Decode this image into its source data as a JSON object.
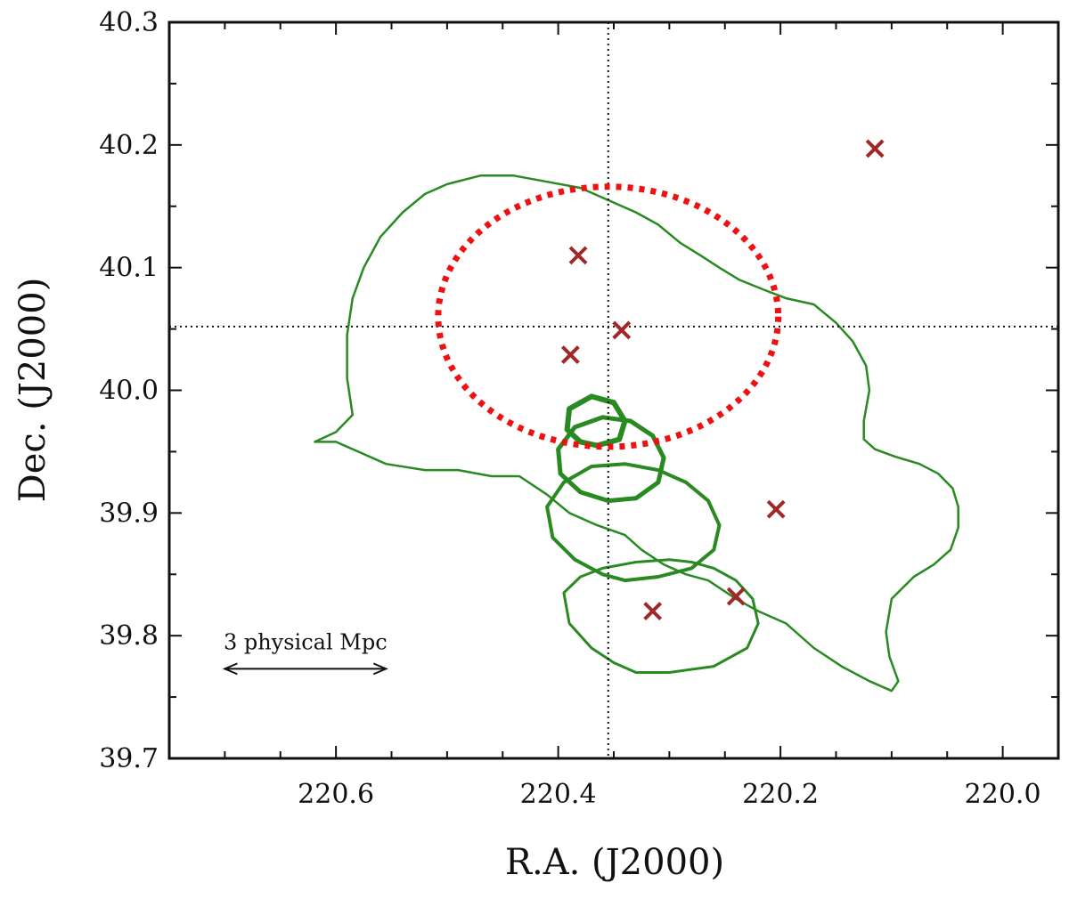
{
  "chart_data": {
    "type": "contour",
    "title": "",
    "xlabel": "R.A. (J2000)",
    "ylabel": "Dec. (J2000)",
    "xlim": [
      220.75,
      219.95
    ],
    "ylim": [
      39.7,
      40.3
    ],
    "x_inverted": true,
    "xticks": [
      220.6,
      220.4,
      220.2,
      220.0
    ],
    "xtick_labels": [
      "220.6",
      "220.4",
      "220.2",
      "220.0"
    ],
    "yticks": [
      39.7,
      39.8,
      39.9,
      40.0,
      40.1,
      40.2,
      40.3
    ],
    "ytick_labels": [
      "39.7",
      "39.8",
      "39.9",
      "40.0",
      "40.1",
      "40.2",
      "40.3"
    ],
    "grid": false,
    "reference_lines": {
      "ra": 220.355,
      "dec": 40.052
    },
    "circle": {
      "ra_center": 220.355,
      "dec_center": 40.06,
      "ra_radius": 0.153,
      "dec_radius": 0.106,
      "style": "dotted"
    },
    "scale_bar": {
      "label": "3 physical Mpc",
      "ra_start": 220.7,
      "ra_end": 220.555,
      "dec": 39.773
    },
    "markers": [
      {
        "ra": 220.382,
        "dec": 40.11
      },
      {
        "ra": 220.343,
        "dec": 40.049
      },
      {
        "ra": 220.389,
        "dec": 40.029
      },
      {
        "ra": 220.115,
        "dec": 40.197
      },
      {
        "ra": 220.204,
        "dec": 39.903
      },
      {
        "ra": 220.24,
        "dec": 39.832
      },
      {
        "ra": 220.315,
        "dec": 39.82
      }
    ],
    "contours": [
      {
        "width": 2.5,
        "points": [
          [
            220.619,
            39.958
          ],
          [
            220.6,
            39.958
          ],
          [
            220.58,
            39.95
          ],
          [
            220.555,
            39.94
          ],
          [
            220.52,
            39.935
          ],
          [
            220.49,
            39.935
          ],
          [
            220.46,
            39.93
          ],
          [
            220.435,
            39.93
          ],
          [
            220.41,
            39.915
          ],
          [
            220.39,
            39.9
          ],
          [
            220.365,
            39.89
          ],
          [
            220.34,
            39.882
          ],
          [
            220.325,
            39.87
          ],
          [
            220.305,
            39.858
          ],
          [
            220.285,
            39.85
          ],
          [
            220.265,
            39.845
          ],
          [
            220.24,
            39.83
          ],
          [
            220.22,
            39.82
          ],
          [
            220.195,
            39.81
          ],
          [
            220.17,
            39.79
          ],
          [
            220.145,
            39.775
          ],
          [
            220.12,
            39.763
          ],
          [
            220.1,
            39.755
          ],
          [
            220.094,
            39.763
          ],
          [
            220.102,
            39.783
          ],
          [
            220.105,
            39.803
          ],
          [
            220.1,
            39.83
          ],
          [
            220.08,
            39.848
          ],
          [
            220.062,
            39.858
          ],
          [
            220.047,
            39.87
          ],
          [
            220.04,
            39.888
          ],
          [
            220.04,
            39.905
          ],
          [
            220.045,
            39.92
          ],
          [
            220.058,
            39.932
          ],
          [
            220.075,
            39.94
          ],
          [
            220.097,
            39.946
          ],
          [
            220.115,
            39.952
          ],
          [
            220.125,
            39.96
          ],
          [
            220.125,
            39.975
          ],
          [
            220.122,
            39.99
          ],
          [
            220.12,
            40.0
          ],
          [
            220.123,
            40.02
          ],
          [
            220.135,
            40.04
          ],
          [
            220.15,
            40.055
          ],
          [
            220.17,
            40.07
          ],
          [
            220.195,
            40.075
          ],
          [
            220.215,
            40.082
          ],
          [
            220.237,
            40.09
          ],
          [
            220.255,
            40.1
          ],
          [
            220.272,
            40.11
          ],
          [
            220.29,
            40.12
          ],
          [
            220.31,
            40.135
          ],
          [
            220.33,
            40.145
          ],
          [
            220.355,
            40.155
          ],
          [
            220.38,
            40.165
          ],
          [
            220.41,
            40.17
          ],
          [
            220.44,
            40.175
          ],
          [
            220.47,
            40.175
          ],
          [
            220.5,
            40.168
          ],
          [
            220.52,
            40.16
          ],
          [
            220.54,
            40.145
          ],
          [
            220.56,
            40.125
          ],
          [
            220.575,
            40.1
          ],
          [
            220.585,
            40.075
          ],
          [
            220.59,
            40.045
          ],
          [
            220.59,
            40.01
          ],
          [
            220.585,
            39.98
          ],
          [
            220.6,
            39.966
          ],
          [
            220.619,
            39.958
          ]
        ]
      },
      {
        "width": 3,
        "points": [
          [
            220.33,
            39.77
          ],
          [
            220.3,
            39.77
          ],
          [
            220.26,
            39.775
          ],
          [
            220.23,
            39.79
          ],
          [
            220.22,
            39.81
          ],
          [
            220.225,
            39.83
          ],
          [
            220.24,
            39.845
          ],
          [
            220.26,
            39.855
          ],
          [
            220.28,
            39.86
          ],
          [
            220.3,
            39.862
          ],
          [
            220.33,
            39.86
          ],
          [
            220.36,
            39.855
          ],
          [
            220.38,
            39.848
          ],
          [
            220.395,
            39.835
          ],
          [
            220.39,
            39.81
          ],
          [
            220.37,
            39.79
          ],
          [
            220.35,
            39.778
          ],
          [
            220.33,
            39.77
          ]
        ]
      },
      {
        "width": 4,
        "points": [
          [
            220.34,
            39.845
          ],
          [
            220.31,
            39.848
          ],
          [
            220.28,
            39.855
          ],
          [
            220.26,
            39.87
          ],
          [
            220.255,
            39.89
          ],
          [
            220.265,
            39.91
          ],
          [
            220.285,
            39.925
          ],
          [
            220.31,
            39.935
          ],
          [
            220.34,
            39.94
          ],
          [
            220.37,
            39.938
          ],
          [
            220.395,
            39.925
          ],
          [
            220.41,
            39.905
          ],
          [
            220.405,
            39.88
          ],
          [
            220.385,
            39.862
          ],
          [
            220.36,
            39.85
          ],
          [
            220.34,
            39.845
          ]
        ]
      },
      {
        "width": 5,
        "points": [
          [
            220.355,
            39.91
          ],
          [
            220.33,
            39.912
          ],
          [
            220.31,
            39.925
          ],
          [
            220.305,
            39.945
          ],
          [
            220.315,
            39.963
          ],
          [
            220.335,
            39.975
          ],
          [
            220.36,
            39.978
          ],
          [
            220.385,
            39.97
          ],
          [
            220.4,
            39.952
          ],
          [
            220.398,
            39.932
          ],
          [
            220.38,
            39.917
          ],
          [
            220.355,
            39.91
          ]
        ]
      },
      {
        "width": 6,
        "points": [
          [
            220.365,
            39.955
          ],
          [
            220.345,
            39.96
          ],
          [
            220.34,
            39.975
          ],
          [
            220.35,
            39.99
          ],
          [
            220.37,
            39.995
          ],
          [
            220.39,
            39.985
          ],
          [
            220.392,
            39.968
          ],
          [
            220.38,
            39.958
          ],
          [
            220.365,
            39.955
          ]
        ]
      }
    ]
  }
}
